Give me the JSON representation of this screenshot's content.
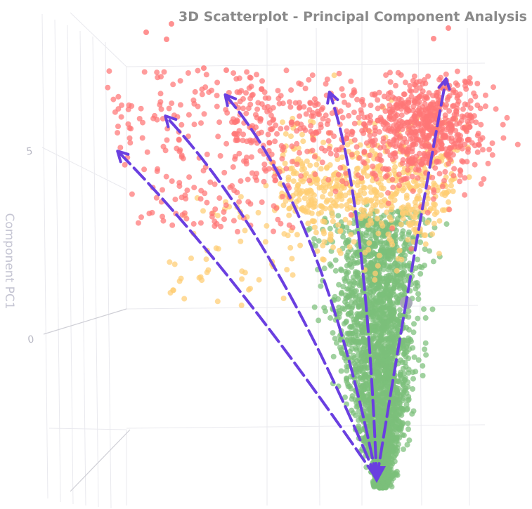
{
  "chart_data": {
    "type": "scatter",
    "title": "3D Scatterplot - Principal Component Analysis",
    "ylabel": "Component PC1",
    "y_ticks": [
      {
        "value": 0,
        "label": "0"
      },
      {
        "value": 5,
        "label": "5"
      }
    ],
    "colors": {
      "high": "#ff7676",
      "mid": "#ffcd73",
      "low": "#7cbf7a",
      "arrow": "#6a3fe0",
      "highlight": "#a5a5b5"
    },
    "clusters": [
      {
        "level": "low",
        "center_y": -2.8,
        "color": "#7cbf7a"
      },
      {
        "level": "mid",
        "center_y": 4.2,
        "color": "#ffcd73"
      },
      {
        "level": "high",
        "center_y": 6.3,
        "color": "#ff7676"
      }
    ],
    "highlight_point": {
      "y": 0.9
    }
  }
}
